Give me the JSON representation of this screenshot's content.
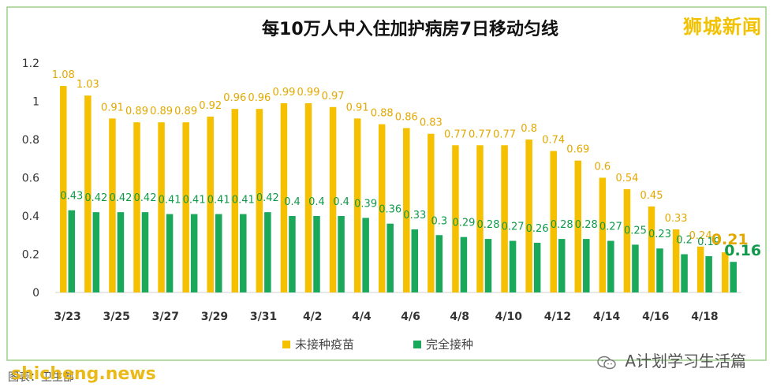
{
  "brand": "狮城新闻",
  "footer": {
    "source_text": "图表：卫生部",
    "watermark": "shicheng.news",
    "account": "A计划学习生活篇"
  },
  "colors": {
    "unvaccinated": "#f5c000",
    "vaccinated": "#1aa85a",
    "unvaccinated_label": "#e3a800",
    "vaccinated_label": "#0f9a4a",
    "border": "#9bcf87"
  },
  "chart_data": {
    "type": "bar",
    "title": "每10万人中入住加护病房7日移动匀线",
    "categories": [
      "3/23",
      "3/24",
      "3/25",
      "3/26",
      "3/27",
      "3/28",
      "3/29",
      "3/30",
      "3/31",
      "4/1",
      "4/2",
      "4/3",
      "4/4",
      "4/5",
      "4/6",
      "4/7",
      "4/8",
      "4/9",
      "4/10",
      "4/11",
      "4/12",
      "4/13",
      "4/14",
      "4/15",
      "4/16",
      "4/17",
      "4/18",
      "4/19"
    ],
    "tick_labels": [
      "3/23",
      "",
      "3/25",
      "",
      "3/27",
      "",
      "3/29",
      "",
      "3/31",
      "",
      "4/2",
      "",
      "4/4",
      "",
      "4/6",
      "",
      "4/8",
      "",
      "4/10",
      "",
      "4/12",
      "",
      "4/14",
      "",
      "4/16",
      "",
      "4/18",
      ""
    ],
    "series": [
      {
        "name": "未接种疫苗",
        "values": [
          1.08,
          1.03,
          0.91,
          0.89,
          0.89,
          0.89,
          0.92,
          0.96,
          0.96,
          0.99,
          0.99,
          0.97,
          0.91,
          0.88,
          0.86,
          0.83,
          0.77,
          0.77,
          0.77,
          0.8,
          0.74,
          0.69,
          0.6,
          0.54,
          0.45,
          0.33,
          0.24,
          0.21
        ]
      },
      {
        "name": "完全接种",
        "values": [
          0.43,
          0.42,
          0.42,
          0.42,
          0.41,
          0.41,
          0.41,
          0.41,
          0.42,
          0.4,
          0.4,
          0.4,
          0.39,
          0.36,
          0.33,
          0.3,
          0.29,
          0.28,
          0.27,
          0.26,
          0.28,
          0.28,
          0.27,
          0.25,
          0.23,
          0.2,
          0.19,
          0.16
        ]
      }
    ],
    "y_ticks": [
      "0",
      "0.2",
      "0.4",
      "0.6",
      "0.8",
      "1",
      "1.2"
    ],
    "ylim": [
      0,
      1.2
    ],
    "xlabel": "",
    "ylabel": "",
    "legend_position": "bottom-center",
    "grid": false
  }
}
